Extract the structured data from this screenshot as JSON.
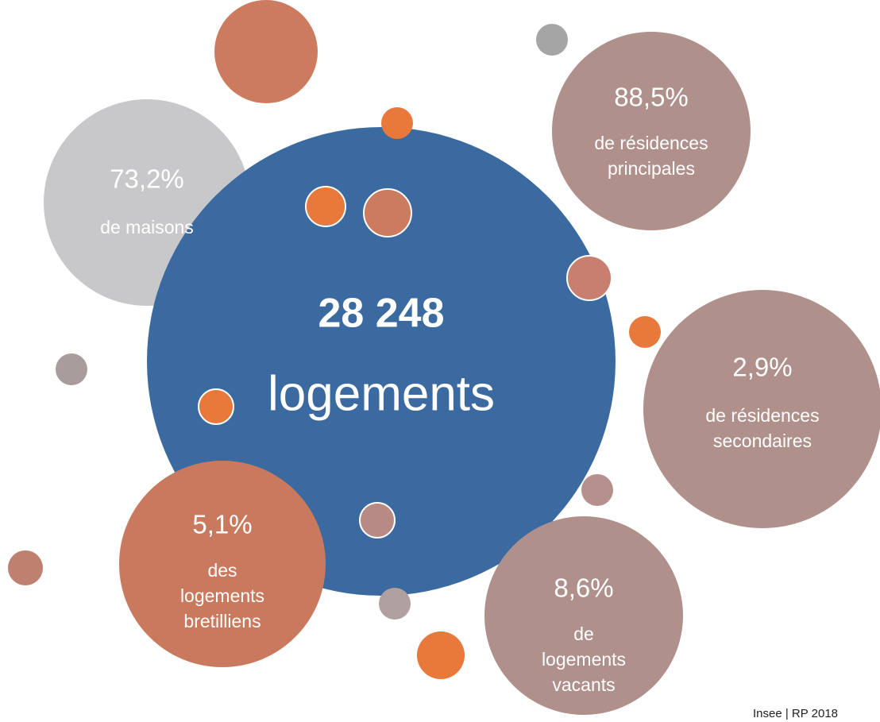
{
  "center": {
    "value": "28 248",
    "label": "logements"
  },
  "bubbles": [
    {
      "value": "73,2%",
      "label_lines": [
        "de maisons"
      ]
    },
    {
      "value": "88,5%",
      "label_lines": [
        "de résidences",
        "principales"
      ]
    },
    {
      "value": "2,9%",
      "label_lines": [
        "de résidences",
        "secondaires"
      ]
    },
    {
      "value": "5,1%",
      "label_lines": [
        "des",
        "logements",
        "bretilliens"
      ]
    },
    {
      "value": "8,6%",
      "label_lines": [
        "de",
        "logements",
        "vacants"
      ]
    }
  ],
  "source": "Insee | RP 2018"
}
